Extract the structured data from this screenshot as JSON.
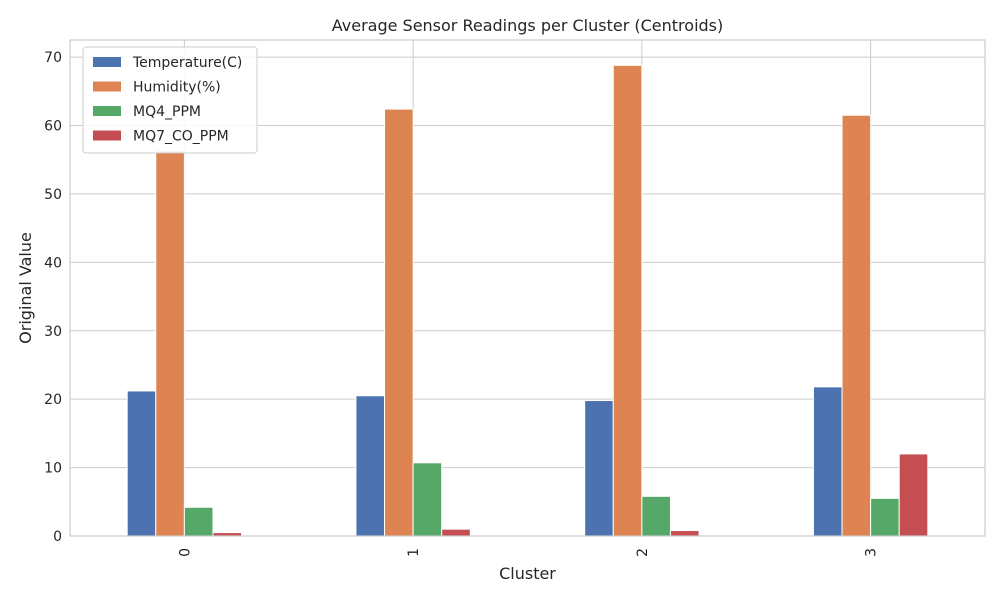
{
  "chart_data": {
    "type": "bar",
    "title": "Average Sensor Readings per Cluster (Centroids)",
    "xlabel": "Cluster",
    "ylabel": "Original Value",
    "categories": [
      "0",
      "1",
      "2",
      "3"
    ],
    "ylim": [
      0,
      72.5
    ],
    "yticks": [
      0,
      10,
      20,
      30,
      40,
      50,
      60,
      70
    ],
    "grid": true,
    "legend_position": "top-left",
    "series": [
      {
        "name": "Temperature(C)",
        "color": "#4c72b0",
        "values": [
          21.2,
          20.5,
          19.8,
          21.8
        ]
      },
      {
        "name": "Humidity(%)",
        "color": "#dd8452",
        "values": [
          56.3,
          62.4,
          68.8,
          61.5
        ]
      },
      {
        "name": "MQ4_PPM",
        "color": "#55a868",
        "values": [
          4.2,
          10.7,
          5.8,
          5.5
        ]
      },
      {
        "name": "MQ7_CO_PPM",
        "color": "#c44e52",
        "values": [
          0.5,
          1.0,
          0.8,
          12.0
        ]
      }
    ]
  }
}
